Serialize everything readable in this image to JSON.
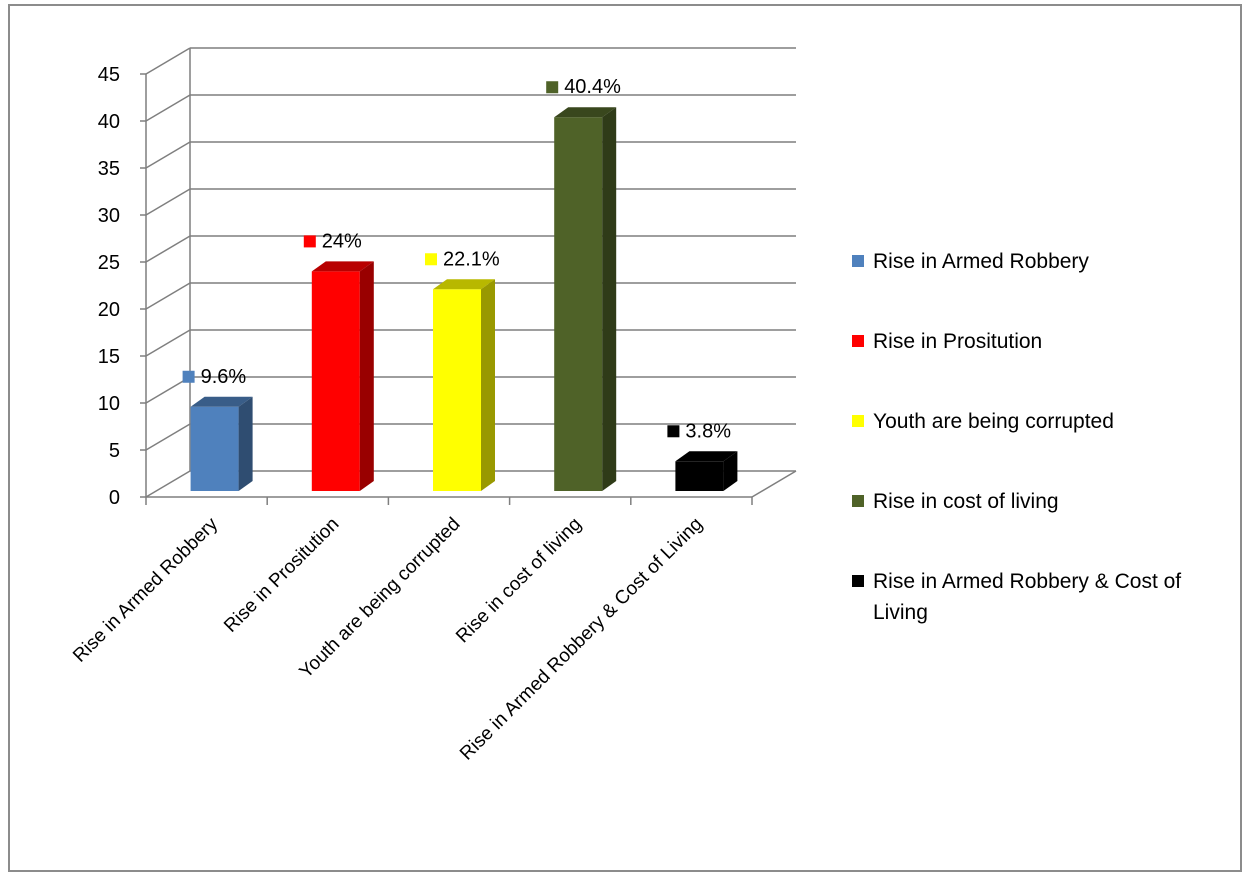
{
  "chart_data": {
    "type": "bar",
    "title": "",
    "xlabel": "",
    "ylabel": "",
    "ylim": [
      0,
      45
    ],
    "yticks": [
      0,
      5,
      10,
      15,
      20,
      25,
      30,
      35,
      40,
      45
    ],
    "grid": true,
    "legend_position": "right",
    "categories": [
      "Rise in Armed Robbery",
      "Rise in Prositution",
      "Youth are being corrupted",
      "Rise in cost of living",
      "Rise in Armed Robbery & Cost of Living"
    ],
    "values": [
      9.6,
      24,
      22.1,
      40.4,
      3.8
    ],
    "data_labels": [
      "9.6%",
      "24%",
      "22.1%",
      "40.4%",
      "3.8%"
    ],
    "colors": [
      "#4f81bd",
      "#ff0000",
      "#ffff00",
      "#4f6228",
      "#000000"
    ],
    "legend": [
      "Rise in Armed Robbery",
      "Rise in Prositution",
      "Youth are being corrupted",
      "Rise in cost of living",
      [
        "Rise in Armed Robbery & Cost of",
        "Living"
      ]
    ]
  }
}
